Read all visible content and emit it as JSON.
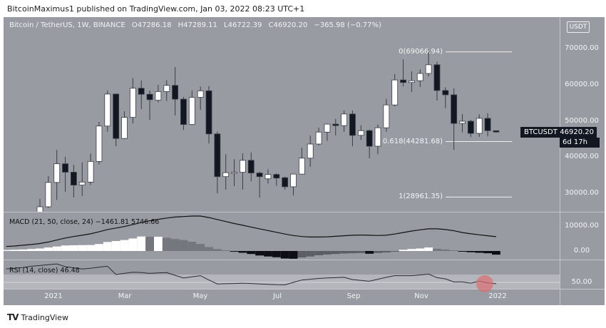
{
  "header": {
    "published": "BitcoinMaximus1 published on TradingView.com, Jan 03, 2022 08:23 UTC+1"
  },
  "legend": {
    "symbol": "Bitcoin / TetherUS, 1W, BINANCE",
    "open": "O47286.18",
    "high": "H47289.11",
    "low": "L46722.39",
    "close": "C46920.20",
    "change": "−365.98 (−0.77%)"
  },
  "currency_button": "USDT",
  "price_scale": [
    "70000.00",
    "60000.00",
    "50000.00",
    "40000.00",
    "30000.00"
  ],
  "macd_scale": [
    "10000.00",
    "0.00"
  ],
  "rsi_scale": [
    "50.00"
  ],
  "time_axis": [
    "2021",
    "Mar",
    "May",
    "Jul",
    "Sep",
    "Nov",
    "2022"
  ],
  "price_tag": {
    "symbol": "BTCUSDT",
    "price": "46920.20",
    "countdown": "6d 17h"
  },
  "fib": [
    {
      "label": "0(69066.94)",
      "level": 69066.94
    },
    {
      "label": "0.618(44281.68)",
      "level": 44281.68
    },
    {
      "label": "1(28961.35)",
      "level": 28961.35
    }
  ],
  "macd_legend": "MACD (21, 50, close, 24)  −1461.81  5746.66",
  "rsi_legend": "RSI (14, close)  46.48",
  "highlight_color": "#e06a6a",
  "footer": {
    "brand": "TradingView"
  },
  "chart_data": {
    "type": "candlestick",
    "interval": "1W",
    "price_range": [
      24900,
      78700
    ],
    "up_color": "#ffffff",
    "down_color": "#131722",
    "candles": [
      [
        "2020-12-21",
        23455,
        28422,
        22350,
        26272
      ],
      [
        "2020-12-28",
        26272,
        34778,
        25880,
        33000
      ],
      [
        "2021-01-04",
        33000,
        41950,
        28130,
        38150
      ],
      [
        "2021-01-11",
        38150,
        40100,
        30420,
        35828
      ],
      [
        "2021-01-18",
        35828,
        37850,
        28850,
        32259
      ],
      [
        "2021-01-25",
        32259,
        38531,
        29241,
        33092
      ],
      [
        "2021-02-01",
        33092,
        40955,
        32296,
        38795
      ],
      [
        "2021-02-08",
        38795,
        49707,
        37988,
        48577
      ],
      [
        "2021-02-15",
        48577,
        58352,
        47003,
        57408
      ],
      [
        "2021-02-22",
        57408,
        57533,
        43000,
        45135
      ],
      [
        "2021-03-01",
        45135,
        52640,
        44950,
        50971
      ],
      [
        "2021-03-08",
        50971,
        61844,
        49274,
        59020
      ],
      [
        "2021-03-15",
        59020,
        61180,
        53271,
        57350
      ],
      [
        "2021-03-22",
        57350,
        58400,
        50313,
        55860
      ],
      [
        "2021-03-29",
        55700,
        60000,
        55100,
        58100
      ],
      [
        "2021-04-05",
        58100,
        61200,
        55500,
        59800
      ],
      [
        "2021-04-12",
        59800,
        64854,
        51500,
        56000
      ],
      [
        "2021-04-19",
        56000,
        56600,
        47500,
        49000
      ],
      [
        "2021-04-26",
        49000,
        58400,
        48800,
        56500
      ],
      [
        "2021-05-03",
        56500,
        59500,
        53000,
        58300
      ],
      [
        "2021-05-10",
        58300,
        59600,
        43800,
        46400
      ],
      [
        "2021-05-17",
        46400,
        47000,
        30000,
        34600
      ],
      [
        "2021-05-24",
        34600,
        40800,
        31000,
        35700
      ],
      [
        "2021-05-31",
        35700,
        39400,
        32000,
        35800
      ],
      [
        "2021-06-07",
        35800,
        41000,
        31000,
        39100
      ],
      [
        "2021-06-14",
        39100,
        41300,
        33300,
        35600
      ],
      [
        "2021-06-21",
        35600,
        36000,
        28800,
        34600
      ],
      [
        "2021-06-28",
        34000,
        36600,
        32700,
        35200
      ],
      [
        "2021-07-05",
        35200,
        35500,
        32100,
        34200
      ],
      [
        "2021-07-12",
        34300,
        34600,
        31000,
        31800
      ],
      [
        "2021-07-19",
        31800,
        35400,
        29400,
        35300
      ],
      [
        "2021-07-26",
        35300,
        42600,
        35200,
        39700
      ],
      [
        "2021-08-02",
        39700,
        46000,
        37300,
        43600
      ],
      [
        "2021-08-09",
        43600,
        48100,
        43200,
        46900
      ],
      [
        "2021-08-16",
        46900,
        49200,
        44500,
        49100
      ],
      [
        "2021-08-23",
        49100,
        50500,
        46000,
        48700
      ],
      [
        "2021-08-30",
        48700,
        52900,
        47000,
        51900
      ],
      [
        "2021-09-06",
        51900,
        52860,
        43000,
        46000
      ],
      [
        "2021-09-13",
        46000,
        48800,
        44700,
        47300
      ],
      [
        "2021-09-20",
        47300,
        47600,
        39660,
        43000
      ],
      [
        "2021-09-27",
        43000,
        49000,
        40800,
        48100
      ],
      [
        "2021-10-04",
        48100,
        56100,
        47000,
        54400
      ],
      [
        "2021-10-11",
        54400,
        62900,
        54000,
        61300
      ],
      [
        "2021-10-18",
        61300,
        67000,
        59500,
        60600
      ],
      [
        "2021-10-25",
        60600,
        63700,
        58000,
        61100
      ],
      [
        "2021-11-01",
        61100,
        64200,
        59400,
        63100
      ],
      [
        "2021-11-08",
        63100,
        69000,
        62300,
        65500
      ],
      [
        "2021-11-15",
        65500,
        66300,
        55600,
        58400
      ],
      [
        "2021-11-22",
        58400,
        59300,
        53500,
        57200
      ],
      [
        "2021-11-29",
        57200,
        59000,
        42000,
        49300
      ],
      [
        "2021-12-06",
        49300,
        51900,
        46800,
        49900
      ],
      [
        "2021-12-13",
        49900,
        50300,
        45500,
        46550
      ],
      [
        "2021-12-20",
        46550,
        51800,
        45600,
        50700
      ],
      [
        "2021-12-27",
        50700,
        52100,
        45700,
        47300
      ],
      [
        "2022-01-03",
        47286.18,
        47289.11,
        46722.39,
        46920.2
      ]
    ],
    "macd": {
      "params": "21, 50, close, 24",
      "start": "2020-11-23",
      "macd_line": [
        1800,
        2000,
        2300,
        2600,
        3000,
        3600,
        4400,
        5200,
        5800,
        6300,
        6900,
        7700,
        8600,
        9200,
        9800,
        10600,
        11400,
        12100,
        12700,
        13200,
        13600,
        13800,
        14000,
        14000,
        13400,
        12600,
        11800,
        11000,
        10300,
        9600,
        8900,
        8200,
        7500,
        6800,
        6200,
        5800,
        5600,
        5600,
        5700,
        5900,
        6100,
        6300,
        6400,
        6300,
        6200,
        6300,
        6800,
        7400,
        8000,
        8500,
        8900,
        8900,
        8600,
        8100,
        7400,
        6900,
        6500,
        6100,
        5746.66
      ],
      "histogram": [
        400,
        500,
        600,
        800,
        1000,
        1400,
        1800,
        2200,
        2300,
        2350,
        2400,
        2800,
        3600,
        4000,
        4400,
        5000,
        5800,
        5700,
        5700,
        5300,
        4800,
        4400,
        3700,
        2800,
        1600,
        800,
        300,
        -300,
        -700,
        -1200,
        -1800,
        -2200,
        -2500,
        -3000,
        -3100,
        -2600,
        -2200,
        -1700,
        -1400,
        -1200,
        -1000,
        -900,
        -800,
        -1100,
        -800,
        -600,
        -200,
        500,
        800,
        1000,
        1400,
        900,
        600,
        300,
        -100,
        -500,
        -700,
        -900,
        -1461.81
      ],
      "range": [
        -4700,
        15600
      ]
    },
    "rsi": {
      "params": "14, close",
      "start": "2020-11-23",
      "values": [
        84.5,
        86,
        88,
        91,
        93,
        95,
        97,
        90,
        87,
        84,
        86,
        89,
        91,
        70,
        73,
        76,
        75,
        73,
        74,
        75,
        68,
        61,
        64,
        67,
        56,
        46,
        46.5,
        47,
        48,
        47,
        46,
        45,
        44,
        43.6,
        50,
        56,
        58,
        60,
        61.5,
        62,
        63,
        57,
        55,
        53,
        58,
        63,
        67,
        67,
        67,
        69,
        71,
        62,
        59,
        51,
        51,
        48,
        53,
        49,
        46.48
      ],
      "band": [
        50,
        70
      ]
    }
  }
}
